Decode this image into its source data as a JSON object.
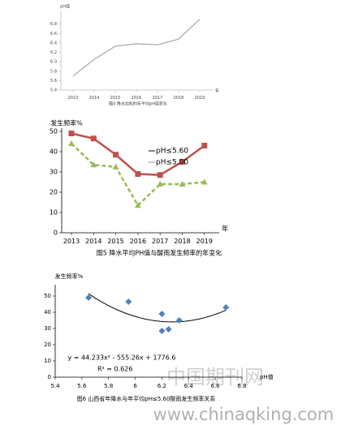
{
  "chart_data": [
    {
      "type": "line",
      "y_label": "pH值",
      "x_label": "年",
      "caption": "图4 降水加权的年平均pH值变化",
      "categories": [
        "2013",
        "2014",
        "2015",
        "2016",
        "2017",
        "2018",
        "2019"
      ],
      "values": [
        5.7,
        6.05,
        6.33,
        6.38,
        6.36,
        6.48,
        6.9
      ],
      "color": "#a6a6a6",
      "ylim": [
        5.4,
        7.0
      ],
      "yticks": [
        5.4,
        5.6,
        5.8,
        {
          "value": 6,
          "label": "6.0"
        },
        6.2,
        6.4,
        6.6,
        6.8
      ],
      "grid": false
    },
    {
      "type": "line",
      "y_label": "发生频率%",
      "x_label": "年",
      "caption": "图5  降水平均PH值与酸雨发生频率的年变化",
      "categories": [
        "2013",
        "2014",
        "2015",
        "2016",
        "2017",
        "2018",
        "2019"
      ],
      "series": [
        {
          "name": "pH≤5.60",
          "color": "#c0504d",
          "marker": "square",
          "dashed": false,
          "values": [
            49,
            46.5,
            38.5,
            29,
            28.5,
            35,
            43
          ]
        },
        {
          "name": "pH≤5.00",
          "color": "#9bbb59",
          "marker": "triangle",
          "dashed": true,
          "values": [
            44,
            33.5,
            32.5,
            13.5,
            24,
            24,
            25
          ]
        }
      ],
      "ylim": [
        0,
        50
      ],
      "yticks": [
        0,
        10,
        20,
        30,
        40,
        50
      ],
      "grid": false
    },
    {
      "type": "scatter",
      "y_label": "发生频率%",
      "x_label": "pH值",
      "caption": "图6 山西省年降水与年平均pH≤5.60酸雨发生频率关系",
      "x": [
        5.65,
        5.95,
        6.2,
        6.2,
        6.25,
        6.33,
        6.68
      ],
      "values": [
        49,
        46.5,
        39,
        28.5,
        29.5,
        35,
        43
      ],
      "color": "#4f81bd",
      "trendline": {
        "coefficients": [
          44.233,
          -555.26,
          1776.6
        ],
        "equation": "y = 44.233x² - 555.26x + 1776.6",
        "r2": "R² = 0.626"
      },
      "xlim": [
        5.4,
        6.8
      ],
      "xticks": [
        5.4,
        5.6,
        5.8,
        6,
        6.2,
        6.4,
        6.6,
        6.8
      ],
      "ylim": [
        0,
        55
      ],
      "yticks": [
        0,
        10,
        20,
        30,
        40,
        50
      ],
      "grid": false
    }
  ],
  "watermark": {
    "site_name": "中国期刊网",
    "url": "www.chinaqking.com"
  }
}
